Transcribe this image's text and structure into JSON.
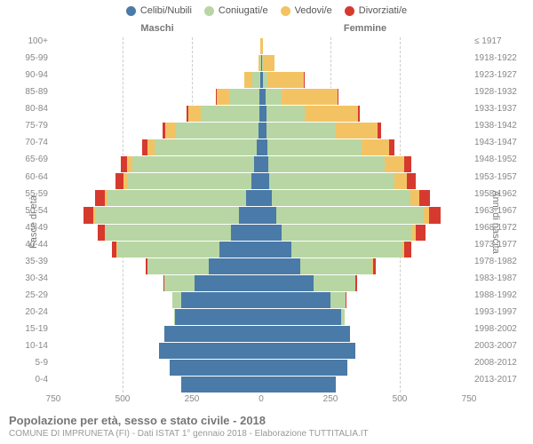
{
  "colors": {
    "celibi": "#4a7aa8",
    "coniugati": "#b7d6a4",
    "vedovi": "#f3c363",
    "divorziati": "#d63a2f",
    "grid": "#cccccc",
    "text_muted": "#888888"
  },
  "legend": [
    {
      "label": "Celibi/Nubili",
      "color": "#4a7aa8"
    },
    {
      "label": "Coniugati/e",
      "color": "#b7d6a4"
    },
    {
      "label": "Vedovi/e",
      "color": "#f3c363"
    },
    {
      "label": "Divorziati/e",
      "color": "#d63a2f"
    }
  ],
  "gender_labels": {
    "male": "Maschi",
    "female": "Femmine"
  },
  "axis_labels": {
    "left": "Fasce di età",
    "right": "Anni di nascita"
  },
  "x_axis": {
    "max": 750,
    "ticks": [
      750,
      500,
      250,
      0,
      250,
      500,
      750
    ]
  },
  "footer": {
    "title": "Popolazione per età, sesso e stato civile - 2018",
    "subtitle": "COMUNE DI IMPRUNETA (FI) - Dati ISTAT 1° gennaio 2018 - Elaborazione TUTTITALIA.IT"
  },
  "rows": [
    {
      "age": "100+",
      "birth": "≤ 1917",
      "m": {
        "c": 0,
        "co": 0,
        "v": 2,
        "d": 0
      },
      "f": {
        "c": 0,
        "co": 0,
        "v": 5,
        "d": 0
      }
    },
    {
      "age": "95-99",
      "birth": "1918-1922",
      "m": {
        "c": 0,
        "co": 3,
        "v": 8,
        "d": 0
      },
      "f": {
        "c": 3,
        "co": 2,
        "v": 42,
        "d": 0
      }
    },
    {
      "age": "90-94",
      "birth": "1923-1927",
      "m": {
        "c": 2,
        "co": 30,
        "v": 30,
        "d": 0
      },
      "f": {
        "c": 8,
        "co": 15,
        "v": 130,
        "d": 2
      }
    },
    {
      "age": "85-89",
      "birth": "1928-1932",
      "m": {
        "c": 5,
        "co": 110,
        "v": 45,
        "d": 3
      },
      "f": {
        "c": 15,
        "co": 60,
        "v": 200,
        "d": 5
      }
    },
    {
      "age": "80-84",
      "birth": "1933-1937",
      "m": {
        "c": 8,
        "co": 210,
        "v": 45,
        "d": 5
      },
      "f": {
        "c": 18,
        "co": 140,
        "v": 190,
        "d": 8
      }
    },
    {
      "age": "75-79",
      "birth": "1938-1942",
      "m": {
        "c": 10,
        "co": 300,
        "v": 35,
        "d": 10
      },
      "f": {
        "c": 20,
        "co": 250,
        "v": 150,
        "d": 12
      }
    },
    {
      "age": "70-74",
      "birth": "1943-1947",
      "m": {
        "c": 15,
        "co": 370,
        "v": 25,
        "d": 18
      },
      "f": {
        "c": 22,
        "co": 340,
        "v": 100,
        "d": 20
      }
    },
    {
      "age": "65-69",
      "birth": "1948-1952",
      "m": {
        "c": 25,
        "co": 440,
        "v": 18,
        "d": 25
      },
      "f": {
        "c": 25,
        "co": 420,
        "v": 70,
        "d": 28
      }
    },
    {
      "age": "60-64",
      "birth": "1953-1957",
      "m": {
        "c": 35,
        "co": 450,
        "v": 12,
        "d": 30
      },
      "f": {
        "c": 30,
        "co": 450,
        "v": 45,
        "d": 32
      }
    },
    {
      "age": "55-59",
      "birth": "1958-1962",
      "m": {
        "c": 55,
        "co": 500,
        "v": 8,
        "d": 35
      },
      "f": {
        "c": 40,
        "co": 500,
        "v": 30,
        "d": 38
      }
    },
    {
      "age": "50-54",
      "birth": "1963-1967",
      "m": {
        "c": 80,
        "co": 520,
        "v": 5,
        "d": 35
      },
      "f": {
        "c": 55,
        "co": 530,
        "v": 20,
        "d": 42
      }
    },
    {
      "age": "45-49",
      "birth": "1968-1972",
      "m": {
        "c": 110,
        "co": 450,
        "v": 3,
        "d": 28
      },
      "f": {
        "c": 75,
        "co": 470,
        "v": 12,
        "d": 35
      }
    },
    {
      "age": "40-44",
      "birth": "1973-1977",
      "m": {
        "c": 150,
        "co": 370,
        "v": 2,
        "d": 18
      },
      "f": {
        "c": 110,
        "co": 400,
        "v": 6,
        "d": 25
      }
    },
    {
      "age": "35-39",
      "birth": "1978-1982",
      "m": {
        "c": 190,
        "co": 220,
        "v": 0,
        "d": 8
      },
      "f": {
        "c": 140,
        "co": 260,
        "v": 3,
        "d": 12
      }
    },
    {
      "age": "30-34",
      "birth": "1983-1987",
      "m": {
        "c": 240,
        "co": 110,
        "v": 0,
        "d": 3
      },
      "f": {
        "c": 190,
        "co": 150,
        "v": 0,
        "d": 5
      }
    },
    {
      "age": "25-29",
      "birth": "1988-1992",
      "m": {
        "c": 290,
        "co": 30,
        "v": 0,
        "d": 0
      },
      "f": {
        "c": 250,
        "co": 55,
        "v": 0,
        "d": 2
      }
    },
    {
      "age": "20-24",
      "birth": "1993-1997",
      "m": {
        "c": 310,
        "co": 5,
        "v": 0,
        "d": 0
      },
      "f": {
        "c": 290,
        "co": 12,
        "v": 0,
        "d": 0
      }
    },
    {
      "age": "15-19",
      "birth": "1998-2002",
      "m": {
        "c": 350,
        "co": 0,
        "v": 0,
        "d": 0
      },
      "f": {
        "c": 320,
        "co": 0,
        "v": 0,
        "d": 0
      }
    },
    {
      "age": "10-14",
      "birth": "2003-2007",
      "m": {
        "c": 370,
        "co": 0,
        "v": 0,
        "d": 0
      },
      "f": {
        "c": 340,
        "co": 0,
        "v": 0,
        "d": 0
      }
    },
    {
      "age": "5-9",
      "birth": "2008-2012",
      "m": {
        "c": 330,
        "co": 0,
        "v": 0,
        "d": 0
      },
      "f": {
        "c": 310,
        "co": 0,
        "v": 0,
        "d": 0
      }
    },
    {
      "age": "0-4",
      "birth": "2013-2017",
      "m": {
        "c": 290,
        "co": 0,
        "v": 0,
        "d": 0
      },
      "f": {
        "c": 270,
        "co": 0,
        "v": 0,
        "d": 0
      }
    }
  ]
}
